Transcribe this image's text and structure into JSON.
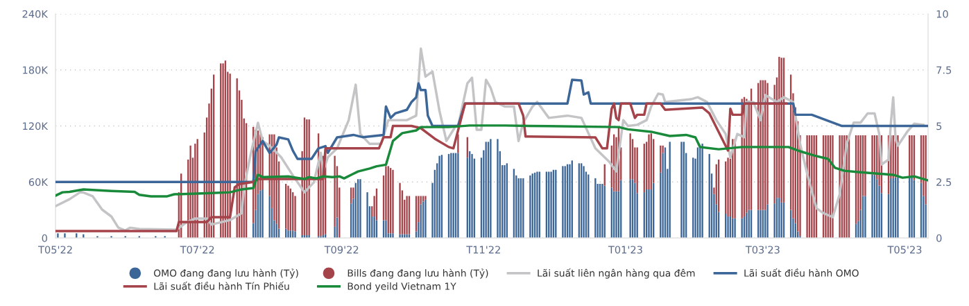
{
  "chart_data": {
    "type": "bar",
    "stacked": true,
    "grid": "y",
    "legend": "bottom",
    "x": [
      "2022-05-02",
      "2022-05-05",
      "2022-05-10",
      "2022-05-13",
      "2022-05-19",
      "2022-05-25",
      "2022-05-31",
      "2022-06-06",
      "2022-06-13",
      "2022-06-17",
      "2022-06-23",
      "2022-06-24",
      "2022-06-27",
      "2022-06-28",
      "2022-06-29",
      "2022-06-30",
      "2022-07-01",
      "2022-07-04",
      "2022-07-05",
      "2022-07-06",
      "2022-07-07",
      "2022-07-08",
      "2022-07-11",
      "2022-07-12",
      "2022-07-13",
      "2022-07-14",
      "2022-07-15",
      "2022-07-18",
      "2022-07-19",
      "2022-07-20",
      "2022-07-21",
      "2022-07-22",
      "2022-07-25",
      "2022-07-26",
      "2022-07-27",
      "2022-07-28",
      "2022-07-29",
      "2022-08-01",
      "2022-08-02",
      "2022-08-03",
      "2022-08-04",
      "2022-08-05",
      "2022-08-08",
      "2022-08-09",
      "2022-08-10",
      "2022-08-11",
      "2022-08-12",
      "2022-08-15",
      "2022-08-16",
      "2022-08-17",
      "2022-08-18",
      "2022-08-22",
      "2022-08-23",
      "2022-08-24",
      "2022-08-25",
      "2022-08-29",
      "2022-08-30",
      "2022-08-31",
      "2022-09-05",
      "2022-09-06",
      "2022-09-07",
      "2022-09-08",
      "2022-09-09",
      "2022-09-12",
      "2022-09-13",
      "2022-09-14",
      "2022-09-15",
      "2022-09-16",
      "2022-09-19",
      "2022-09-20",
      "2022-09-21",
      "2022-09-22",
      "2022-09-23",
      "2022-09-26",
      "2022-09-27",
      "2022-09-28",
      "2022-09-29",
      "2022-09-30",
      "2022-10-03",
      "2022-10-04",
      "2022-10-05",
      "2022-10-06",
      "2022-10-07",
      "2022-10-10",
      "2022-10-11",
      "2022-10-12",
      "2022-10-13",
      "2022-10-14",
      "2022-10-17",
      "2022-10-18",
      "2022-10-19",
      "2022-10-20",
      "2022-10-21",
      "2022-10-25",
      "2022-10-26",
      "2022-10-27",
      "2022-10-28",
      "2022-10-31",
      "2022-11-01",
      "2022-11-02",
      "2022-11-03",
      "2022-11-04",
      "2022-11-07",
      "2022-11-08",
      "2022-11-09",
      "2022-11-10",
      "2022-11-11",
      "2022-11-14",
      "2022-11-15",
      "2022-11-16",
      "2022-11-17",
      "2022-11-18",
      "2022-11-21",
      "2022-11-22",
      "2022-11-23",
      "2022-11-24",
      "2022-11-25",
      "2022-11-28",
      "2022-11-29",
      "2022-11-30",
      "2022-12-01",
      "2022-12-02",
      "2022-12-05",
      "2022-12-06",
      "2022-12-07",
      "2022-12-08",
      "2022-12-09",
      "2022-12-12",
      "2022-12-13",
      "2022-12-14",
      "2022-12-15",
      "2022-12-16",
      "2022-12-19",
      "2022-12-20",
      "2022-12-21",
      "2022-12-22",
      "2022-12-23",
      "2022-12-26",
      "2022-12-27",
      "2022-12-28",
      "2022-12-29",
      "2022-12-30",
      "2023-01-03",
      "2023-01-04",
      "2023-01-05",
      "2023-01-06",
      "2023-01-09",
      "2023-01-10",
      "2023-01-11",
      "2023-01-12",
      "2023-01-13",
      "2023-01-16",
      "2023-01-17",
      "2023-01-18",
      "2023-01-19",
      "2023-01-20",
      "2023-01-25",
      "2023-01-26",
      "2023-01-27",
      "2023-01-30",
      "2023-01-31",
      "2023-02-01",
      "2023-02-02",
      "2023-02-03",
      "2023-02-06",
      "2023-02-07",
      "2023-02-08",
      "2023-02-09",
      "2023-02-10",
      "2023-02-13",
      "2023-02-14",
      "2023-02-15",
      "2023-02-16",
      "2023-02-17",
      "2023-02-20",
      "2023-02-21",
      "2023-02-22",
      "2023-02-23",
      "2023-02-24",
      "2023-02-27",
      "2023-02-28",
      "2023-03-01",
      "2023-03-02",
      "2023-03-03",
      "2023-03-06",
      "2023-03-07",
      "2023-03-08",
      "2023-03-09",
      "2023-03-10",
      "2023-03-13",
      "2023-03-14",
      "2023-03-15",
      "2023-03-16",
      "2023-03-17",
      "2023-03-20",
      "2023-03-21",
      "2023-03-22",
      "2023-03-23",
      "2023-03-24",
      "2023-03-27",
      "2023-03-28",
      "2023-03-29",
      "2023-03-30",
      "2023-03-31",
      "2023-04-03",
      "2023-04-04",
      "2023-04-05",
      "2023-04-06",
      "2023-04-07",
      "2023-04-10",
      "2023-04-11",
      "2023-04-12",
      "2023-04-13",
      "2023-04-14",
      "2023-04-17",
      "2023-04-18",
      "2023-04-19",
      "2023-04-20",
      "2023-04-21",
      "2023-04-24",
      "2023-04-25",
      "2023-04-26",
      "2023-04-27",
      "2023-04-28",
      "2023-05-03",
      "2023-05-04",
      "2023-05-05",
      "2023-05-08",
      "2023-05-09",
      "2023-05-10"
    ],
    "xlim": [
      "2022-05-01",
      "2023-05-11"
    ],
    "xticks": [
      {
        "value": "2022-05-01",
        "label": "T05'22"
      },
      {
        "value": "2022-07-01",
        "label": "T07'22"
      },
      {
        "value": "2022-09-01",
        "label": "T09'22"
      },
      {
        "value": "2022-11-01",
        "label": "T11'22"
      },
      {
        "value": "2023-01-01",
        "label": "T01'23"
      },
      {
        "value": "2023-03-01",
        "label": "T03'23"
      },
      {
        "value": "2023-05-01",
        "label": "T05'23"
      }
    ],
    "ylim": [
      0,
      240
    ],
    "yticks": [
      0,
      {
        "value": 60,
        "label": "60K"
      },
      {
        "value": 120,
        "label": "120K"
      },
      {
        "value": 180,
        "label": "180K"
      },
      {
        "value": 240,
        "label": "240K"
      }
    ],
    "y2lim": [
      0,
      10
    ],
    "y2ticks": [
      0,
      2.5,
      5,
      7.5,
      10
    ],
    "series": [
      {
        "name": "OMO đang đang lưu hành (Tỷ)",
        "color": "#3b6697",
        "values": [
          5,
          5,
          5,
          4,
          2,
          2,
          2,
          2,
          2,
          2,
          0,
          0,
          0,
          0,
          0,
          0,
          0,
          0,
          0,
          0,
          0,
          0,
          0,
          0,
          0,
          0,
          0,
          0,
          0,
          0,
          0,
          0,
          16,
          30,
          47,
          51,
          52,
          45,
          32,
          19,
          15,
          10,
          10,
          8,
          8,
          8,
          7,
          3,
          3,
          3,
          3,
          2,
          2,
          3,
          4,
          12,
          22,
          0,
          37,
          42,
          59,
          63,
          63,
          49,
          34,
          23,
          23,
          19,
          19,
          19,
          5,
          5,
          5,
          4,
          4,
          4,
          4,
          4,
          7,
          17,
          36,
          39,
          41,
          59,
          73,
          80,
          88,
          89,
          90,
          91,
          91,
          91,
          91,
          86,
          93,
          90,
          85,
          86,
          94,
          103,
          103,
          106,
          106,
          93,
          78,
          78,
          80,
          74,
          67,
          64,
          64,
          64,
          67,
          69,
          70,
          71,
          71,
          71,
          71,
          71,
          73,
          73,
          77,
          77,
          79,
          79,
          83,
          80,
          80,
          77,
          71,
          68,
          64,
          58,
          58,
          58,
          56,
          54,
          50,
          50,
          50,
          62,
          63,
          63,
          59,
          48,
          49,
          52,
          52,
          52,
          59,
          70,
          91,
          97,
          74,
          103,
          103,
          103,
          91,
          86,
          85,
          97,
          99,
          101,
          90,
          69,
          47,
          36,
          28,
          26,
          23,
          23,
          21,
          21,
          21,
          23,
          27,
          30,
          30,
          30,
          30,
          30,
          30,
          36,
          37,
          43,
          43,
          38,
          38,
          30,
          21,
          16,
          7,
          2,
          0,
          0,
          0,
          0,
          0,
          0,
          0,
          0,
          0,
          0,
          0,
          0,
          0,
          0,
          0,
          15,
          18,
          30,
          45,
          45,
          68,
          67,
          63,
          56,
          48,
          47,
          64,
          64,
          65,
          65,
          65,
          65,
          62,
          59,
          45,
          36
        ]
      },
      {
        "name": "Bills đang đang lưu hành (Tỷ)",
        "color": "#a5434a",
        "values": [
          0,
          0,
          0,
          0,
          0,
          0,
          0,
          0,
          0,
          0,
          49,
          69,
          84,
          99,
          86,
          101,
          106,
          113,
          129,
          144,
          160,
          175,
          187,
          187,
          190,
          178,
          176,
          171,
          158,
          148,
          128,
          123,
          103,
          86,
          68,
          60,
          56,
          66,
          79,
          92,
          82,
          72,
          48,
          48,
          45,
          41,
          38,
          90,
          126,
          124,
          124,
          110,
          82,
          85,
          89,
          76,
          55,
          54,
          17,
          12,
          0,
          0,
          0,
          0,
          0,
          11,
          22,
          34,
          48,
          58,
          72,
          70,
          68,
          55,
          47,
          37,
          41,
          41,
          38,
          28,
          9,
          6,
          4,
          0,
          0,
          0,
          0,
          0,
          0,
          0,
          0,
          0,
          20,
          22,
          0,
          0,
          0,
          0,
          0,
          0,
          0,
          0,
          0,
          0,
          0,
          0,
          0,
          0,
          0,
          0,
          0,
          0,
          0,
          0,
          0,
          0,
          0,
          0,
          0,
          0,
          0,
          0,
          0,
          0,
          0,
          0,
          0,
          0,
          0,
          0,
          0,
          0,
          0,
          0,
          0,
          0,
          23,
          45,
          61,
          58,
          69,
          35,
          49,
          43,
          38,
          49,
          52,
          51,
          59,
          60,
          47,
          29,
          8,
          0,
          0,
          0,
          0,
          0,
          0,
          0,
          0,
          0,
          0,
          0,
          0,
          0,
          7,
          43,
          56,
          56,
          63,
          62,
          85,
          85,
          128,
          128,
          122,
          117,
          130,
          136,
          139,
          139,
          139,
          130,
          127,
          129,
          151,
          155,
          155,
          145,
          134,
          124,
          118,
          108,
          110,
          110,
          110,
          110,
          110,
          110,
          110,
          110,
          110,
          110,
          110,
          110,
          110,
          110,
          110,
          95,
          92,
          80,
          65,
          65,
          42,
          43,
          47,
          54,
          62,
          63,
          46,
          46,
          45,
          45,
          45,
          45,
          48,
          51,
          65,
          74
        ]
      },
      {
        "name": "Lãi suất liên ngân hàng qua đêm",
        "type": "line",
        "axis": "y2",
        "color": "#c4c4c6",
        "x": [
          "2022-05-01",
          "2022-05-07",
          "2022-05-12",
          "2022-05-17",
          "2022-05-21",
          "2022-05-25",
          "2022-05-28",
          "2022-05-31",
          "2022-06-02",
          "2022-06-06",
          "2022-06-22",
          "2022-06-26",
          "2022-06-30",
          "2022-07-05",
          "2022-07-07",
          "2022-07-15",
          "2022-07-20",
          "2022-07-21",
          "2022-07-24",
          "2022-07-27",
          "2022-07-29",
          "2022-08-01",
          "2022-08-06",
          "2022-08-11",
          "2022-08-16",
          "2022-08-20",
          "2022-08-23",
          "2022-08-24",
          "2022-08-26",
          "2022-08-30",
          "2022-09-04",
          "2022-09-07",
          "2022-09-09",
          "2022-09-13",
          "2022-09-18",
          "2022-09-21",
          "2022-09-29",
          "2022-10-03",
          "2022-10-05",
          "2022-10-07",
          "2022-10-10",
          "2022-10-13",
          "2022-10-16",
          "2022-10-20",
          "2022-10-21",
          "2022-10-25",
          "2022-10-27",
          "2022-10-29",
          "2022-10-31",
          "2022-11-02",
          "2022-11-04",
          "2022-11-06",
          "2022-11-10",
          "2022-11-14",
          "2022-11-16",
          "2022-11-18",
          "2022-11-22",
          "2022-11-24",
          "2022-11-29",
          "2022-12-07",
          "2022-12-13",
          "2022-12-19",
          "2022-12-25",
          "2022-12-28",
          "2022-12-31",
          "2023-01-02",
          "2023-01-06",
          "2023-01-10",
          "2023-01-12",
          "2023-01-15",
          "2023-01-17",
          "2023-01-18",
          "2023-01-29",
          "2023-02-01",
          "2023-02-05",
          "2023-02-09",
          "2023-02-13",
          "2023-02-15",
          "2023-02-18",
          "2023-02-21",
          "2023-02-22",
          "2023-02-25",
          "2023-02-28",
          "2023-03-02",
          "2023-03-07",
          "2023-03-10",
          "2023-03-14",
          "2023-03-17",
          "2023-03-20",
          "2023-03-24",
          "2023-03-27",
          "2023-03-31",
          "2023-04-03",
          "2023-04-06",
          "2023-04-09",
          "2023-04-12",
          "2023-04-15",
          "2023-04-18",
          "2023-04-20",
          "2023-04-21",
          "2023-04-24",
          "2023-04-25",
          "2023-04-26",
          "2023-04-27",
          "2023-04-28",
          "2023-05-02",
          "2023-05-05",
          "2023-05-09"
        ],
        "values": [
          1.42,
          1.73,
          2.07,
          1.86,
          1.27,
          0.96,
          0.46,
          0.34,
          0.46,
          0.4,
          0.37,
          0.68,
          0.87,
          0.87,
          0.6,
          0.8,
          1.11,
          2.26,
          3.8,
          5.14,
          4.33,
          4.12,
          3.6,
          2.79,
          2.04,
          2.48,
          3.8,
          2.97,
          3.6,
          4.0,
          5.26,
          6.84,
          4.64,
          4.2,
          4.2,
          5.26,
          5.26,
          5.46,
          8.45,
          7.2,
          7.43,
          5.67,
          4.33,
          5.0,
          5.0,
          6.9,
          7.15,
          4.83,
          4.83,
          7.06,
          6.7,
          6.07,
          5.87,
          5.87,
          4.33,
          5.15,
          5.87,
          6.07,
          5.36,
          5.46,
          5.36,
          4.0,
          3.4,
          2.97,
          5.26,
          5.0,
          5.05,
          5.26,
          5.87,
          6.44,
          6.4,
          6.07,
          6.19,
          6.28,
          6.07,
          5.26,
          4.64,
          3.6,
          4.64,
          4.5,
          6.07,
          6.05,
          5.26,
          6.38,
          6.07,
          6.28,
          6.07,
          4.2,
          2.88,
          1.33,
          1.11,
          0.93,
          1.95,
          4.2,
          5.15,
          5.15,
          5.56,
          5.56,
          4.64,
          3.28,
          3.5,
          5.15,
          6.28,
          4.43,
          4.12,
          4.74,
          5.1,
          5.05
        ]
      },
      {
        "name": "Lãi suất điều hành OMO",
        "type": "line",
        "axis": "y2",
        "color": "#3b6697",
        "x": [
          "2022-05-01",
          "2022-07-25",
          "2022-07-26",
          "2022-07-29",
          "2022-08-01",
          "2022-08-04",
          "2022-08-05",
          "2022-08-09",
          "2022-08-11",
          "2022-08-13",
          "2022-08-19",
          "2022-08-22",
          "2022-08-25",
          "2022-08-26",
          "2022-08-30",
          "2022-09-06",
          "2022-09-10",
          "2022-09-19",
          "2022-09-20",
          "2022-09-22",
          "2022-09-24",
          "2022-09-29",
          "2022-10-01",
          "2022-10-03",
          "2022-10-04",
          "2022-10-05",
          "2022-10-07",
          "2022-10-08",
          "2022-10-10",
          "2022-10-21",
          "2022-10-24",
          "2022-12-07",
          "2022-12-09",
          "2022-12-13",
          "2022-12-14",
          "2022-12-16",
          "2022-12-17",
          "2023-03-14",
          "2023-03-15",
          "2023-03-22",
          "2023-03-31",
          "2023-04-04",
          "2023-05-11"
        ],
        "values": [
          2.5,
          2.5,
          3.87,
          4.33,
          3.8,
          4.17,
          4.49,
          4.4,
          3.9,
          3.53,
          3.53,
          4.0,
          4.1,
          3.8,
          4.49,
          4.6,
          4.5,
          4.6,
          5.87,
          5.36,
          5.56,
          5.72,
          6.07,
          6.28,
          6.9,
          6.6,
          6.6,
          5.46,
          5.0,
          5.0,
          6.0,
          6.0,
          7.06,
          7.03,
          6.4,
          6.5,
          6.0,
          6.0,
          5.5,
          5.5,
          5.15,
          5.0,
          5.0
        ]
      },
      {
        "name": "Lãi suất điều hành Tín Phiếu",
        "type": "line",
        "axis": "y2",
        "color": "#a5434a",
        "x": [
          "2022-05-01",
          "2022-06-22",
          "2022-06-23",
          "2022-07-05",
          "2022-07-07",
          "2022-07-15",
          "2022-07-17",
          "2022-07-19",
          "2022-07-25",
          "2022-07-27",
          "2022-08-24",
          "2022-08-25",
          "2022-09-17",
          "2022-09-19",
          "2022-09-22",
          "2022-09-23",
          "2022-10-01",
          "2022-10-05",
          "2022-10-11",
          "2022-10-17",
          "2022-10-19",
          "2022-10-21",
          "2022-10-24",
          "2022-11-16",
          "2022-11-18",
          "2022-11-19",
          "2022-12-19",
          "2022-12-22",
          "2022-12-24",
          "2022-12-26",
          "2022-12-27",
          "2022-12-28",
          "2022-12-29",
          "2022-12-30",
          "2023-01-03",
          "2023-01-05",
          "2023-01-06",
          "2023-01-09",
          "2023-01-10",
          "2023-01-16",
          "2023-01-18",
          "2023-02-03",
          "2023-02-06",
          "2023-02-10",
          "2023-02-14",
          "2023-02-15",
          "2023-02-16",
          "2023-02-20",
          "2023-02-21",
          "2023-03-11"
        ],
        "values": [
          0.31,
          0.31,
          0.71,
          0.71,
          0.93,
          0.93,
          2.26,
          2.41,
          2.5,
          2.63,
          2.63,
          4.0,
          4.0,
          4.5,
          4.5,
          5.0,
          5.0,
          4.9,
          4.43,
          4.06,
          4.0,
          4.8,
          6.0,
          6.0,
          5.46,
          4.53,
          4.49,
          4.0,
          4.0,
          5.77,
          6.0,
          5.36,
          5.26,
          6.0,
          6.0,
          5.36,
          5.5,
          5.5,
          6.0,
          6.0,
          5.72,
          5.82,
          5.56,
          4.73,
          3.9,
          5.77,
          5.5,
          5.5,
          6.0,
          6.0
        ]
      },
      {
        "name": "Bond yeild Vietnam 1Y",
        "type": "line",
        "axis": "y2",
        "color": "#19893a",
        "x": [
          "2022-05-01",
          "2022-05-04",
          "2022-05-07",
          "2022-05-13",
          "2022-05-25",
          "2022-06-04",
          "2022-06-06",
          "2022-06-11",
          "2022-06-18",
          "2022-06-21",
          "2022-07-05",
          "2022-07-15",
          "2022-07-20",
          "2022-07-25",
          "2022-07-27",
          "2022-07-29",
          "2022-08-09",
          "2022-08-16",
          "2022-08-18",
          "2022-08-21",
          "2022-08-24",
          "2022-08-28",
          "2022-08-31",
          "2022-09-02",
          "2022-09-08",
          "2022-09-13",
          "2022-09-16",
          "2022-09-20",
          "2022-09-23",
          "2022-09-27",
          "2022-10-03",
          "2022-10-05",
          "2022-10-17",
          "2022-10-26",
          "2022-11-10",
          "2022-11-29",
          "2022-12-29",
          "2023-01-02",
          "2023-01-12",
          "2023-01-20",
          "2023-01-27",
          "2023-01-31",
          "2023-02-02",
          "2023-02-10",
          "2023-02-20",
          "2023-03-12",
          "2023-03-17",
          "2023-03-23",
          "2023-03-29",
          "2023-04-01",
          "2023-04-05",
          "2023-04-11",
          "2023-04-26",
          "2023-04-30",
          "2023-05-05",
          "2023-05-11"
        ],
        "values": [
          1.89,
          2.04,
          2.06,
          2.17,
          2.1,
          2.06,
          1.93,
          1.86,
          1.86,
          1.95,
          2.0,
          2.04,
          2.17,
          2.23,
          2.82,
          2.72,
          2.75,
          2.63,
          2.72,
          2.66,
          2.75,
          2.72,
          2.75,
          2.66,
          2.97,
          3.1,
          3.2,
          3.27,
          4.33,
          4.68,
          4.8,
          4.95,
          4.95,
          5.02,
          5.02,
          4.99,
          4.95,
          4.85,
          4.74,
          4.55,
          4.6,
          4.49,
          4.06,
          3.96,
          4.06,
          4.06,
          3.87,
          3.68,
          3.53,
          3.13,
          3.0,
          2.94,
          2.82,
          2.69,
          2.75,
          2.57
        ]
      }
    ]
  }
}
